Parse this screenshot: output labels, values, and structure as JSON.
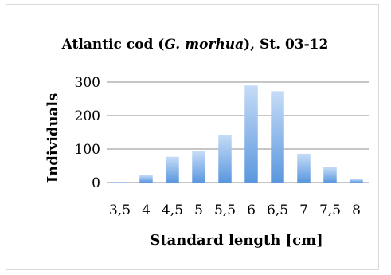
{
  "chart_data": {
    "type": "bar",
    "title_parts": [
      {
        "text": "Atlantic cod (",
        "italic": false
      },
      {
        "text": "G. morhua",
        "italic": true
      },
      {
        "text": "), St. 03-12",
        "italic": false
      }
    ],
    "xlabel": "Standard length [cm]",
    "ylabel": "Individuals",
    "categories": [
      "3,5",
      "4",
      "4,5",
      "5",
      "5,5",
      "6",
      "6,5",
      "7",
      "7,5",
      "8"
    ],
    "values": [
      2,
      22,
      77,
      93,
      143,
      290,
      273,
      86,
      46,
      10
    ],
    "ylim": [
      0,
      300
    ],
    "yticks": [
      "0",
      "100",
      "200",
      "300"
    ],
    "grid": "horizontal",
    "legend": "none",
    "colors": {
      "bar_light": "#c6dcf7",
      "bar_dark": "#5a97de",
      "grid": "#8c8c8c",
      "axis": "#8c8c8c"
    }
  }
}
